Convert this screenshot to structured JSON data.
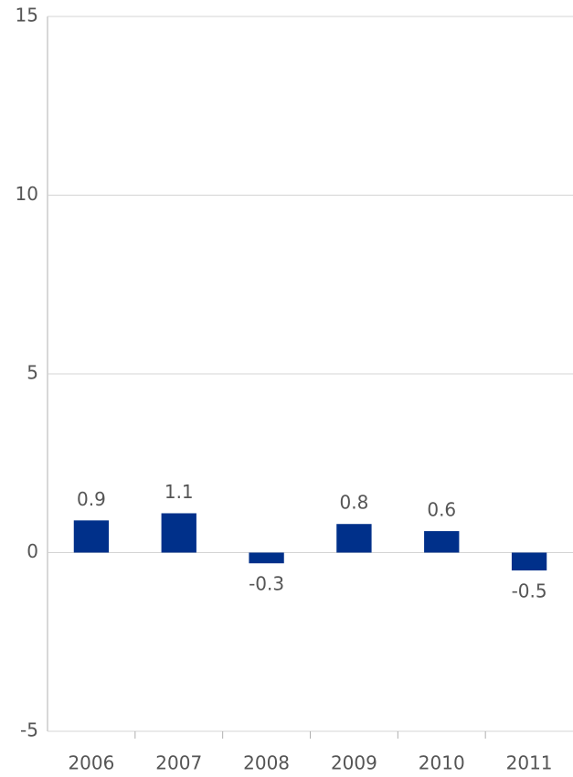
{
  "chart_data": {
    "type": "bar",
    "categories": [
      "2006",
      "2007",
      "2008",
      "2009",
      "2010",
      "2011"
    ],
    "values": [
      0.9,
      1.1,
      -0.3,
      0.8,
      0.6,
      -0.5
    ],
    "color": "#00308a",
    "ylim": [
      -5,
      15
    ],
    "yticks": [
      -5,
      0,
      5,
      10,
      15
    ],
    "grid": true
  }
}
